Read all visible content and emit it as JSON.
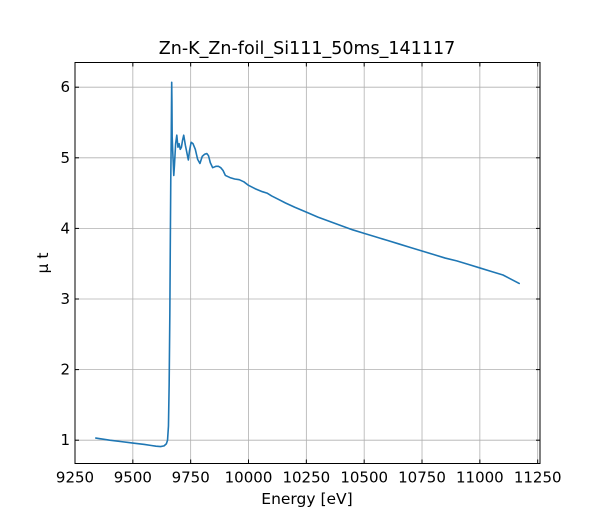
{
  "chart_data": {
    "type": "line",
    "title": "Zn-K_Zn-foil_Si111_50ms_141117",
    "xlabel": "Energy [eV]",
    "ylabel": "μ t",
    "xlim": [
      9250,
      11260
    ],
    "ylim": [
      0.67,
      6.35
    ],
    "xticks": [
      9250,
      9500,
      9750,
      10000,
      10250,
      10500,
      10750,
      11000,
      11250
    ],
    "yticks": [
      1,
      2,
      3,
      4,
      5,
      6
    ],
    "grid": true,
    "legend": "none",
    "series": [
      {
        "color": "#1f77b4",
        "x": [
          9340,
          9400,
          9450,
          9500,
          9550,
          9580,
          9600,
          9620,
          9635,
          9645,
          9650,
          9654,
          9657,
          9660,
          9662,
          9664,
          9666,
          9667,
          9668,
          9669,
          9670,
          9673,
          9677,
          9680,
          9685,
          9690,
          9695,
          9700,
          9705,
          9710,
          9715,
          9720,
          9727,
          9735,
          9740,
          9745,
          9752,
          9760,
          9770,
          9780,
          9790,
          9800,
          9810,
          9820,
          9827,
          9835,
          9845,
          9860,
          9870,
          9880,
          9890,
          9900,
          9920,
          9940,
          9960,
          9980,
          10000,
          10030,
          10060,
          10080,
          10100,
          10130,
          10160,
          10200,
          10250,
          10300,
          10350,
          10400,
          10450,
          10500,
          10550,
          10600,
          10650,
          10700,
          10750,
          10800,
          10850,
          10900,
          10950,
          11000,
          11050,
          11100,
          11170
        ],
        "y": [
          1.03,
          1.0,
          0.98,
          0.96,
          0.94,
          0.925,
          0.915,
          0.91,
          0.92,
          0.95,
          1.0,
          1.2,
          1.8,
          2.8,
          3.8,
          4.7,
          5.3,
          5.7,
          6.07,
          5.8,
          5.3,
          5.05,
          4.75,
          4.9,
          5.2,
          5.32,
          5.15,
          5.2,
          5.12,
          5.15,
          5.25,
          5.32,
          5.18,
          5.05,
          4.97,
          5.1,
          5.22,
          5.2,
          5.12,
          4.98,
          4.92,
          5.02,
          5.05,
          5.06,
          5.03,
          4.93,
          4.86,
          4.88,
          4.88,
          4.86,
          4.82,
          4.75,
          4.72,
          4.7,
          4.69,
          4.66,
          4.61,
          4.56,
          4.52,
          4.5,
          4.46,
          4.41,
          4.36,
          4.3,
          4.23,
          4.16,
          4.1,
          4.04,
          3.98,
          3.93,
          3.88,
          3.83,
          3.78,
          3.73,
          3.68,
          3.63,
          3.58,
          3.54,
          3.49,
          3.44,
          3.39,
          3.34,
          3.22
        ]
      }
    ]
  }
}
